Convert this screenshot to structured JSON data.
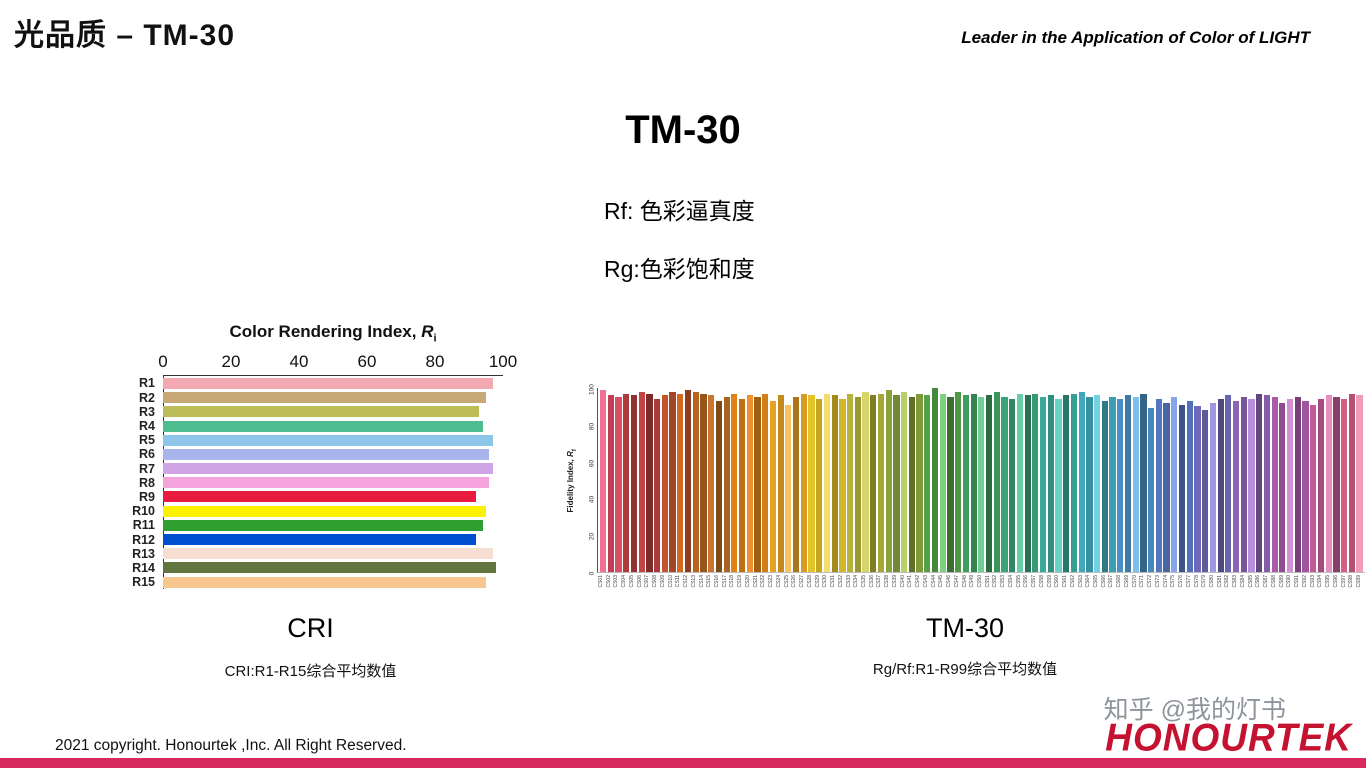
{
  "header": {
    "title": "光品质 – TM-30",
    "tagline": "Leader in the Application of Color of LIGHT"
  },
  "main": {
    "title": "TM-30",
    "line1": "Rf: 色彩逼真度",
    "line2": "Rg:色彩饱和度"
  },
  "cri_section": {
    "label": "CRI",
    "caption": "CRI:R1-R15综合平均数值"
  },
  "tm30_section": {
    "label": "TM-30",
    "caption": "Rg/Rf:R1-R99综合平均数值"
  },
  "footer": {
    "copyright": "2021 copyright. Honourtek ,Inc. All Right Reserved.",
    "logo": "HONOURTEK",
    "logo_color": "#c41230",
    "bar_color": "#d92a5f"
  },
  "watermark": "知乎 @我的灯书",
  "chart_data": [
    {
      "type": "bar",
      "orientation": "horizontal",
      "title": "Color Rendering Index, Ri",
      "title_parts": [
        "Color Rendering Index, ",
        "R",
        "i"
      ],
      "categories": [
        "R1",
        "R2",
        "R3",
        "R4",
        "R5",
        "R6",
        "R7",
        "R8",
        "R9",
        "R10",
        "R11",
        "R12",
        "R13",
        "R14",
        "R15"
      ],
      "values": [
        97,
        95,
        93,
        94,
        97,
        96,
        97,
        96,
        92,
        95,
        94,
        92,
        97,
        98,
        95
      ],
      "colors": [
        "#f2a9b2",
        "#c9a878",
        "#bcbd58",
        "#4dbd8f",
        "#8ec6ea",
        "#a9b5ea",
        "#cfa5e6",
        "#f4a3dd",
        "#e81c3f",
        "#fcf003",
        "#2fa02f",
        "#004fd0",
        "#f7ded2",
        "#63753f",
        "#f7c78f"
      ],
      "xlim": [
        0,
        100
      ],
      "xticks": [
        0,
        20,
        40,
        60,
        80,
        100
      ],
      "grid": false,
      "legend": "none"
    },
    {
      "type": "bar",
      "orientation": "vertical",
      "ylabel": "Fidelity Index, Rf",
      "ylabel_parts": [
        "Fidelity Index, ",
        "R",
        "f"
      ],
      "categories": [
        "CS01",
        "CS02",
        "CS03",
        "CS04",
        "CS05",
        "CS06",
        "CS07",
        "CS08",
        "CS09",
        "CS10",
        "CS11",
        "CS12",
        "CS13",
        "CS14",
        "CS15",
        "CS16",
        "CS17",
        "CS18",
        "CS19",
        "CS20",
        "CS21",
        "CS22",
        "CS23",
        "CS24",
        "CS25",
        "CS26",
        "CS27",
        "CS28",
        "CS29",
        "CS30",
        "CS31",
        "CS32",
        "CS33",
        "CS34",
        "CS35",
        "CS36",
        "CS37",
        "CS38",
        "CS39",
        "CS40",
        "CS41",
        "CS42",
        "CS43",
        "CS44",
        "CS45",
        "CS46",
        "CS47",
        "CS48",
        "CS49",
        "CS50",
        "CS51",
        "CS52",
        "CS53",
        "CS54",
        "CS55",
        "CS56",
        "CS57",
        "CS58",
        "CS59",
        "CS60",
        "CS61",
        "CS62",
        "CS63",
        "CS64",
        "CS65",
        "CS66",
        "CS67",
        "CS68",
        "CS69",
        "CS70",
        "CS71",
        "CS72",
        "CS73",
        "CS74",
        "CS75",
        "CS76",
        "CS77",
        "CS78",
        "CS79",
        "CS80",
        "CS81",
        "CS82",
        "CS83",
        "CS84",
        "CS85",
        "CS86",
        "CS87",
        "CS88",
        "CS89",
        "CS90",
        "CS91",
        "CS92",
        "CS93",
        "CS94",
        "CS95",
        "CS96",
        "CS97",
        "CS98",
        "CS99"
      ],
      "values": [
        99,
        96,
        95,
        97,
        96,
        98,
        97,
        94,
        96,
        98,
        97,
        99,
        98,
        97,
        96,
        93,
        95,
        97,
        94,
        96,
        95,
        97,
        93,
        96,
        91,
        95,
        97,
        96,
        94,
        97,
        96,
        94,
        97,
        95,
        98,
        96,
        97,
        99,
        96,
        98,
        95,
        97,
        96,
        100,
        97,
        95,
        98,
        96,
        97,
        95,
        96,
        98,
        95,
        94,
        97,
        96,
        97,
        95,
        96,
        94,
        96,
        97,
        98,
        95,
        96,
        93,
        95,
        94,
        96,
        95,
        97,
        89,
        94,
        92,
        95,
        91,
        93,
        90,
        88,
        92,
        94,
        96,
        93,
        95,
        94,
        97,
        96,
        95,
        92,
        94,
        95,
        93,
        91,
        94,
        96,
        95,
        94,
        97,
        96
      ],
      "colors": [
        "#f2708f",
        "#c13e56",
        "#d94f63",
        "#b03a3a",
        "#963131",
        "#c24444",
        "#7e2a2a",
        "#a83c3c",
        "#c1552e",
        "#a34526",
        "#d2691e",
        "#8f3d1f",
        "#b5651d",
        "#96551a",
        "#c87533",
        "#7d4a18",
        "#a9641f",
        "#e08214",
        "#c06f12",
        "#f09030",
        "#a35f10",
        "#d27d1a",
        "#e8a020",
        "#c68a1b",
        "#f5c45e",
        "#a87618",
        "#d99a24",
        "#e6c229",
        "#c4a623",
        "#f2dd6e",
        "#a38a1d",
        "#d4b52a",
        "#b5b33a",
        "#999731",
        "#d6d46a",
        "#7e7d28",
        "#a8a636",
        "#8aa23c",
        "#748833",
        "#b7d06a",
        "#5f7029",
        "#82993a",
        "#55a04a",
        "#47873e",
        "#7fcf7e",
        "#3a6e33",
        "#4f9645",
        "#3f9e5f",
        "#358450",
        "#6fcf91",
        "#2b6b41",
        "#3b9459",
        "#3aa37a",
        "#318867",
        "#66cfa8",
        "#287056",
        "#369a73",
        "#3aa99c",
        "#318e83",
        "#68d4c8",
        "#28756c",
        "#369f93",
        "#41a7bc",
        "#37909f",
        "#72d2e4",
        "#2d7a85",
        "#3d9db1",
        "#4a90c4",
        "#3f7aa6",
        "#7ec0ec",
        "#346587",
        "#4588ba",
        "#5577c2",
        "#4865a4",
        "#86a5ea",
        "#3c5486",
        "#5070b7",
        "#6f6ab8",
        "#5e5a9c",
        "#9f97e0",
        "#4e4a80",
        "#6964ae",
        "#8d63b3",
        "#785598",
        "#b68fdb",
        "#62467c",
        "#855ea9",
        "#a85ba8",
        "#8f4d8f",
        "#d490d4",
        "#763f76",
        "#9e559e",
        "#c15a96",
        "#a44c7f",
        "#e98fc0",
        "#87406a",
        "#d16087",
        "#b25172",
        "#f09cb4"
      ],
      "ylim": [
        0,
        100
      ],
      "yticks": [
        0,
        20,
        40,
        60,
        80,
        100
      ],
      "grid": false,
      "legend": "none"
    }
  ]
}
